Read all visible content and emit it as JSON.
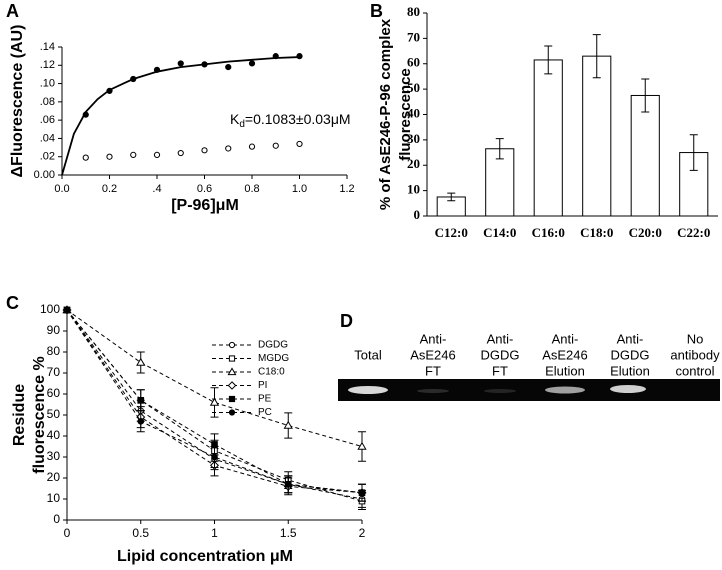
{
  "chart_data": [
    {
      "type": "scatter",
      "panel_label": "A",
      "x_label": "[P-96]μM",
      "y_label": "ΔFluorescence (AU)",
      "annotation": {
        "main": "K",
        "sub": "d",
        "rest": "=0.1083±0.03μM"
      },
      "xlim": [
        0,
        1.2
      ],
      "ylim": [
        0,
        0.14
      ],
      "xticks": [
        {
          "value": 0,
          "label": "0.0"
        },
        {
          "value": 0.2,
          "label": "0.2"
        },
        {
          "value": 0.4,
          "label": ".4"
        },
        {
          "value": 0.6,
          "label": "0.6"
        },
        {
          "value": 0.8,
          "label": "0.8"
        },
        {
          "value": 1.0,
          "label": "1.0"
        },
        {
          "value": 1.2,
          "label": "1.2"
        }
      ],
      "yticks": [
        {
          "value": 0,
          "label": "0.00"
        },
        {
          "value": 0.02,
          "label": ".02"
        },
        {
          "value": 0.04,
          "label": ".04"
        },
        {
          "value": 0.06,
          "label": ".06"
        },
        {
          "value": 0.08,
          "label": ".08"
        },
        {
          "value": 0.1,
          "label": ".10"
        },
        {
          "value": 0.12,
          "label": ".12"
        },
        {
          "value": 0.14,
          "label": ".14"
        }
      ],
      "grid": false,
      "series": [
        {
          "color": "#000000",
          "marker": "circle",
          "x": [
            0.1,
            0.2,
            0.3,
            0.4,
            0.5,
            0.6,
            0.7,
            0.8,
            0.9,
            1.0
          ],
          "values": [
            0.066,
            0.092,
            0.105,
            0.115,
            0.122,
            0.121,
            0.118,
            0.122,
            0.13,
            0.13
          ]
        },
        {
          "color": "#000000",
          "marker": "circle-open",
          "x": [
            0.1,
            0.2,
            0.3,
            0.4,
            0.5,
            0.6,
            0.7,
            0.8,
            0.9,
            1.0
          ],
          "values": [
            0.019,
            0.02,
            0.022,
            0.022,
            0.024,
            0.027,
            0.029,
            0.031,
            0.032,
            0.034
          ]
        },
        {
          "color": "#000000",
          "marker": "line",
          "x": [
            0,
            0.05,
            0.1,
            0.15,
            0.2,
            0.3,
            0.4,
            0.5,
            0.6,
            0.7,
            0.8,
            0.9,
            1.0
          ],
          "values": [
            0,
            0.045,
            0.069,
            0.083,
            0.093,
            0.105,
            0.113,
            0.118,
            0.121,
            0.124,
            0.126,
            0.128,
            0.129
          ]
        }
      ]
    },
    {
      "type": "bar",
      "panel_label": "B",
      "y_label": [
        "% of AsE246-P-96 complex",
        "fluorescence"
      ],
      "categories": [
        "C12:0",
        "C14:0",
        "C16:0",
        "C18:0",
        "C20:0",
        "C22:0"
      ],
      "values": [
        7.5,
        26.5,
        61.5,
        63,
        47.5,
        25
      ],
      "errors": [
        1.5,
        4,
        5.5,
        8.5,
        6.5,
        7
      ],
      "color": "#ffffff",
      "ylim": [
        0,
        80
      ],
      "yticks": [
        0,
        10,
        20,
        30,
        40,
        50,
        60,
        70,
        80
      ],
      "grid": false
    },
    {
      "type": "line",
      "panel_label": "C",
      "x_label": "Lipid concentration μM",
      "y_label": [
        "Residue",
        "fluorescence %"
      ],
      "x": [
        0,
        0.5,
        1,
        1.5,
        2
      ],
      "xlim": [
        0,
        2
      ],
      "xticks": [
        0,
        0.5,
        1,
        1.5,
        2
      ],
      "ylim": [
        0,
        100
      ],
      "yticks": [
        0,
        10,
        20,
        30,
        40,
        50,
        60,
        70,
        80,
        90,
        100
      ],
      "grid": false,
      "series": [
        {
          "name": "DGDG",
          "color": "#000000",
          "marker": "circle-open",
          "values": [
            100,
            52,
            29,
            17,
            10
          ],
          "errors": [
            0,
            5,
            5,
            4,
            4
          ]
        },
        {
          "name": "MGDG",
          "color": "#000000",
          "marker": "square-open",
          "values": [
            100,
            57,
            33,
            19,
            9
          ],
          "errors": [
            0,
            5,
            5,
            4,
            4
          ]
        },
        {
          "name": "C18:0",
          "color": "#000000",
          "marker": "triangle-open",
          "values": [
            100,
            75,
            56,
            45,
            35
          ],
          "errors": [
            0,
            5,
            7,
            6,
            7
          ]
        },
        {
          "name": "PI",
          "color": "#000000",
          "marker": "diamond-open",
          "values": [
            100,
            49,
            26,
            16,
            13
          ],
          "errors": [
            0,
            5,
            5,
            4,
            4
          ]
        },
        {
          "name": "PE",
          "color": "#000000",
          "marker": "square",
          "values": [
            100,
            57,
            36,
            17,
            13
          ],
          "errors": [
            0,
            5,
            5,
            4,
            4
          ]
        },
        {
          "name": "PC",
          "color": "#000000",
          "marker": "circle",
          "values": [
            100,
            47,
            30,
            17,
            13
          ],
          "errors": [
            0,
            5,
            5,
            4,
            4
          ]
        }
      ]
    }
  ],
  "gel": {
    "panel_label": "D",
    "lanes": [
      [
        "Total"
      ],
      [
        "Anti-",
        "AsE246",
        "FT"
      ],
      [
        "Anti-",
        "DGDG",
        "FT"
      ],
      [
        "Anti-",
        "AsE246",
        "Elution"
      ],
      [
        "Anti-",
        "DGDG",
        "Elution"
      ],
      [
        "No",
        "antibody",
        "control"
      ]
    ]
  }
}
